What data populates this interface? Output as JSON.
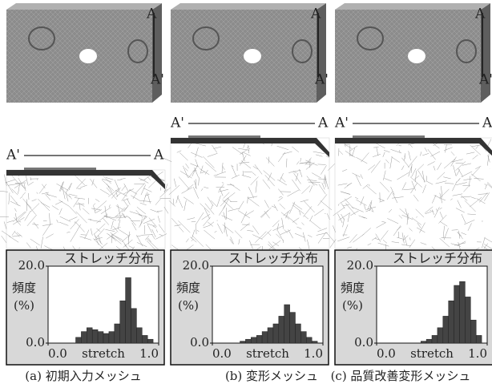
{
  "chart_data": [
    {
      "type": "histogram",
      "title": "ストレッチ分布",
      "ylabel": [
        "頻度",
        "(%)"
      ],
      "xlabel": "stretch",
      "bins": [
        0,
        0.05,
        0.1,
        0.15,
        0.2,
        0.25,
        0.3,
        0.35,
        0.4,
        0.45,
        0.5,
        0.55,
        0.6,
        0.65,
        0.7,
        0.75,
        0.8,
        0.85,
        0.9,
        0.95,
        1.0
      ],
      "values": [
        0,
        0,
        0,
        0,
        0,
        1.5,
        3,
        4,
        3.5,
        3,
        2.5,
        3,
        5,
        11,
        17,
        9,
        4,
        2,
        1,
        0
      ],
      "color": "#444444",
      "xlim": [
        0,
        1
      ],
      "ylim": [
        0,
        20
      ],
      "xticks": [
        {
          "value": 0,
          "label": "0.0"
        },
        {
          "value": 1,
          "label": "1.0"
        }
      ],
      "yticks": [
        {
          "value": 0,
          "label": "0.0"
        },
        {
          "value": 20,
          "label": "20.0"
        }
      ]
    },
    {
      "type": "histogram",
      "title": "ストレッチ分布",
      "ylabel": [
        "頻度",
        "(%)"
      ],
      "xlabel": "stretch",
      "bins": [
        0,
        0.05,
        0.1,
        0.15,
        0.2,
        0.25,
        0.3,
        0.35,
        0.4,
        0.45,
        0.5,
        0.55,
        0.6,
        0.65,
        0.7,
        0.75,
        0.8,
        0.85,
        0.9,
        0.95,
        1.0
      ],
      "values": [
        0,
        0,
        0,
        0,
        0,
        0.5,
        1,
        1.5,
        2,
        3,
        4,
        5,
        7,
        10,
        8,
        5,
        3,
        1.5,
        0.5,
        0
      ],
      "color": "#444444",
      "xlim": [
        0,
        1
      ],
      "ylim": [
        0,
        20
      ],
      "xticks": [
        {
          "value": 0,
          "label": "0.0"
        },
        {
          "value": 1,
          "label": "1.0"
        }
      ],
      "yticks": [
        {
          "value": 0,
          "label": "0.0"
        },
        {
          "value": 20,
          "label": "20.0"
        }
      ]
    },
    {
      "type": "histogram",
      "title": "ストレッチ分布",
      "ylabel": [
        "頻度",
        "(%)"
      ],
      "xlabel": "stretch",
      "bins": [
        0,
        0.05,
        0.1,
        0.15,
        0.2,
        0.25,
        0.3,
        0.35,
        0.4,
        0.45,
        0.5,
        0.55,
        0.6,
        0.65,
        0.7,
        0.75,
        0.8,
        0.85,
        0.9,
        0.95,
        1.0
      ],
      "values": [
        0,
        0,
        0,
        0,
        0,
        0,
        0,
        0,
        0.5,
        1,
        2,
        4,
        7,
        11,
        15,
        16,
        12,
        6,
        2,
        0
      ],
      "color": "#444444",
      "xlim": [
        0,
        1
      ],
      "ylim": [
        0,
        20
      ],
      "xticks": [
        {
          "value": 0,
          "label": "0.0"
        },
        {
          "value": 1,
          "label": "1.0"
        }
      ],
      "yticks": [
        {
          "value": 0,
          "label": "0.0"
        },
        {
          "value": 20,
          "label": "20.0"
        }
      ]
    }
  ],
  "panels": [
    {
      "caption": "(a) 初期入力メッシュ",
      "mesh_labels": [
        "A",
        "A'"
      ],
      "section_labels": [
        "A'",
        "A"
      ]
    },
    {
      "caption": "(b) 変形メッシュ",
      "mesh_labels": [
        "A",
        "A'"
      ],
      "section_labels": [
        "A'",
        "A"
      ]
    },
    {
      "caption": "(c) 品質改善変形メッシュ",
      "mesh_labels": [
        "A",
        "A'"
      ],
      "section_labels": [
        "A'",
        "A"
      ]
    }
  ]
}
